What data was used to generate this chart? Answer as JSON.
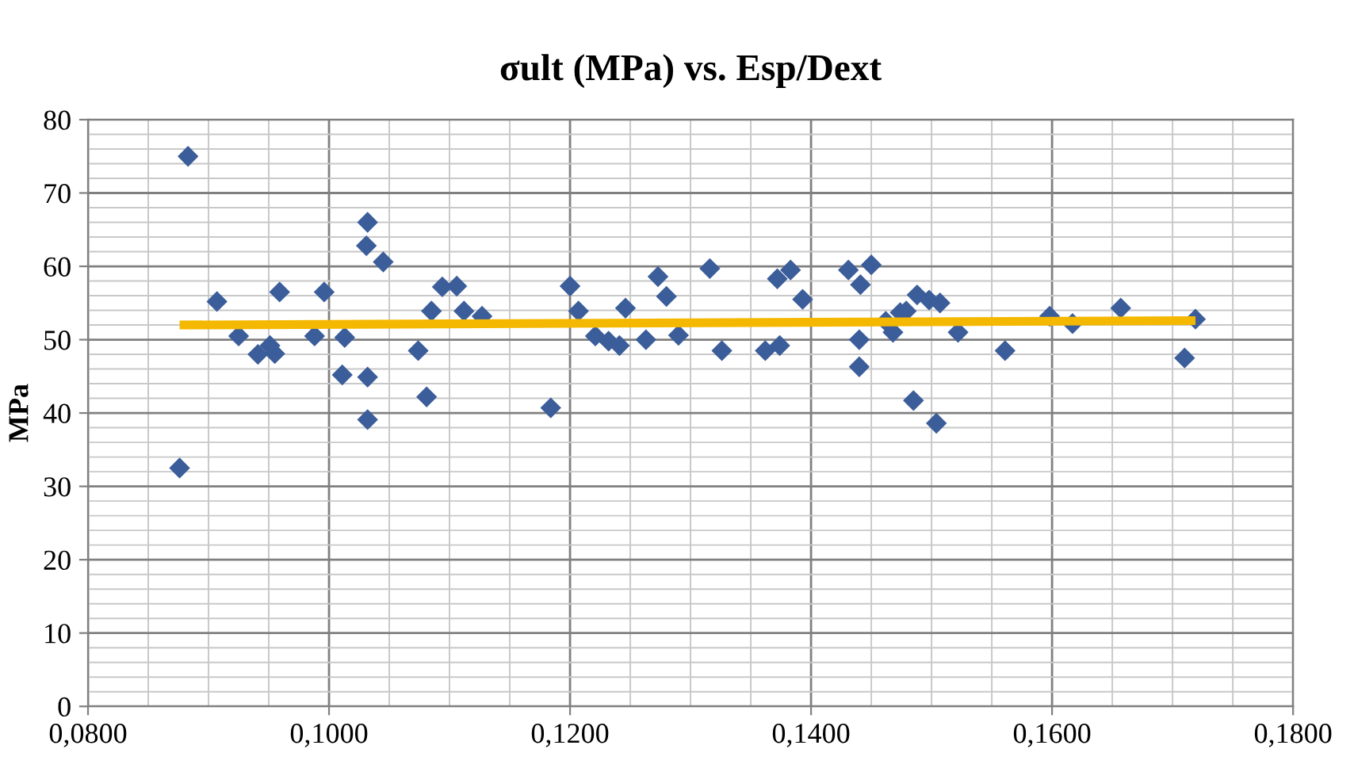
{
  "chart_data": {
    "type": "scatter",
    "title": "σult (MPa) vs. Esp/Dext",
    "ylabel": "MPa",
    "xlim": [
      0.08,
      0.18
    ],
    "ylim": [
      0,
      80
    ],
    "xticks": [
      {
        "value": 0.08,
        "label": "0,0800"
      },
      {
        "value": 0.1,
        "label": "0,1000"
      },
      {
        "value": 0.12,
        "label": "0,1200"
      },
      {
        "value": 0.14,
        "label": "0,1400"
      },
      {
        "value": 0.16,
        "label": "0,1600"
      },
      {
        "value": 0.18,
        "label": "0,1800"
      }
    ],
    "yticks": [
      0,
      10,
      20,
      30,
      40,
      50,
      60,
      70,
      80
    ],
    "grid": true,
    "legend": false,
    "marker": "diamond",
    "series": [
      {
        "color": "#3b5d9a",
        "x": [
          0.0883,
          0.0876,
          0.0907,
          0.0925,
          0.0941,
          0.0951,
          0.0955,
          0.0959,
          0.0988,
          0.0996,
          0.1013,
          0.1011,
          0.1032,
          0.1031,
          0.1045,
          0.1032,
          0.1032,
          0.1074,
          0.1081,
          0.1085,
          0.1094,
          0.1106,
          0.1112,
          0.1127,
          0.1184,
          0.12,
          0.1207,
          0.1221,
          0.1232,
          0.1241,
          0.1246,
          0.1263,
          0.1273,
          0.128,
          0.129,
          0.1316,
          0.1326,
          0.1362,
          0.1372,
          0.1374,
          0.1383,
          0.1393,
          0.1431,
          0.1441,
          0.145,
          0.144,
          0.144,
          0.1462,
          0.1474,
          0.1468,
          0.1479,
          0.1488,
          0.1498,
          0.1507,
          0.1485,
          0.1504,
          0.1522,
          0.1561,
          0.1598,
          0.1617,
          0.1657,
          0.1719,
          0.171
        ],
        "values": [
          75,
          32.5,
          55.2,
          50.5,
          48,
          49.2,
          48.1,
          56.5,
          50.5,
          56.5,
          50.3,
          45.2,
          66,
          62.8,
          60.6,
          44.9,
          39.1,
          48.5,
          42.2,
          53.9,
          57.2,
          57.3,
          53.9,
          53.2,
          40.7,
          57.3,
          53.9,
          50.5,
          49.8,
          49.2,
          54.3,
          50,
          58.6,
          55.9,
          50.6,
          59.7,
          48.5,
          48.5,
          58.3,
          49.2,
          59.5,
          55.5,
          59.5,
          57.5,
          60.2,
          50,
          46.3,
          52.5,
          53.7,
          51,
          53.9,
          56.1,
          55.4,
          55,
          41.7,
          38.6,
          51,
          48.5,
          53.2,
          52.2,
          54.3,
          52.8,
          47.5
        ]
      },
      {
        "type": "line",
        "color": "#f5b800",
        "marker": "none",
        "x": [
          0.0876,
          0.1719
        ],
        "values": [
          52.0,
          52.6
        ]
      }
    ]
  }
}
